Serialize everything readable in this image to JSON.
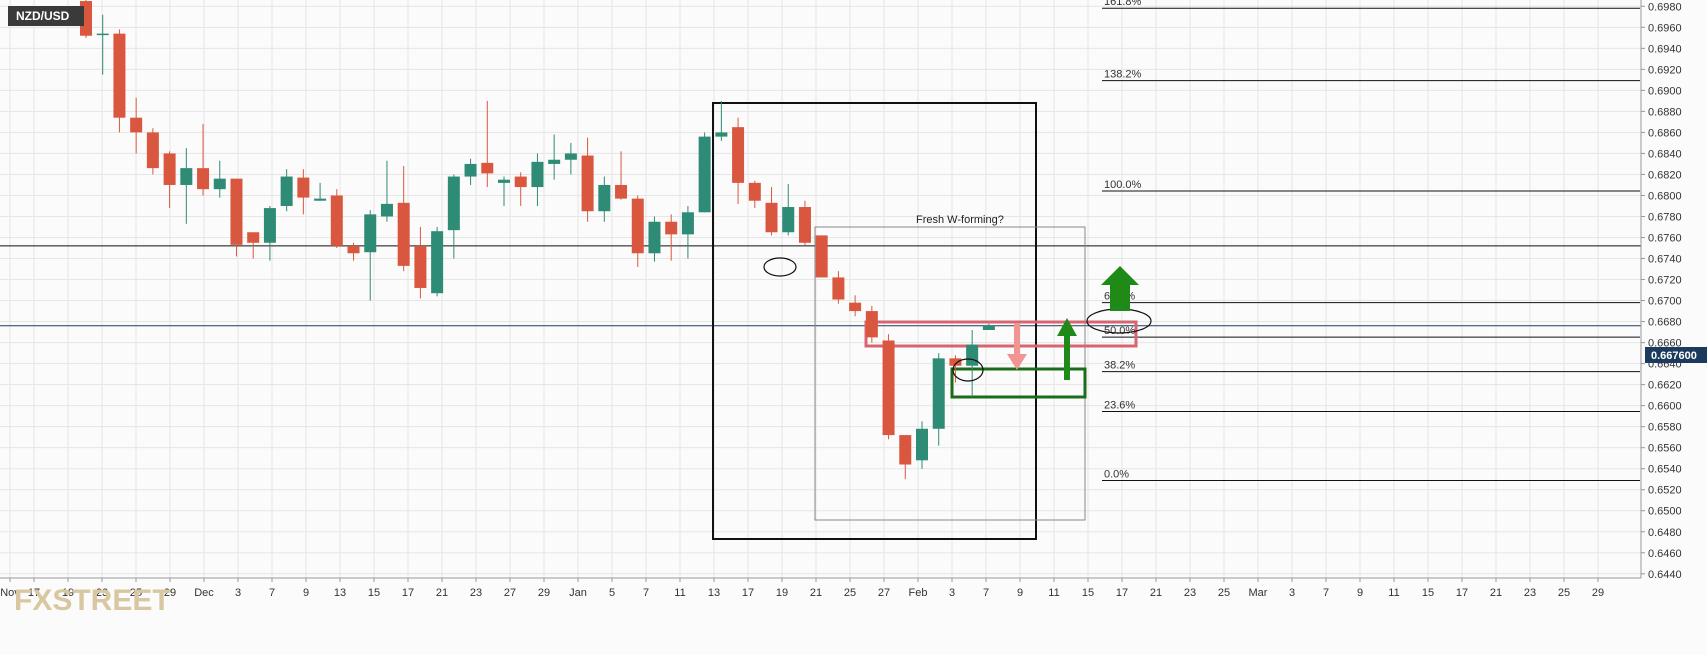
{
  "symbol": "NZD/USD",
  "logo_text": "FXSTREET",
  "price_tag": "0.667600",
  "colors": {
    "bull": "#2e8b75",
    "bear": "#d9573e",
    "grid": "#e6e6e6",
    "price_tag_bg": "#1c3a5e",
    "logo": "#d9c7a2",
    "arrow_green": "#1f8a17",
    "arrow_pink": "#f19494",
    "rect_green": "#1a6b1a",
    "rect_red": "#d76470"
  },
  "chart_data": {
    "type": "candlestick",
    "title": "NZD/USD",
    "ylim": [
      0.6436,
      0.6986
    ],
    "y_ticks": [
      "0.6980",
      "0.6960",
      "0.6940",
      "0.6920",
      "0.6900",
      "0.6880",
      "0.6860",
      "0.6840",
      "0.6820",
      "0.6800",
      "0.6780",
      "0.6760",
      "0.6740",
      "0.6720",
      "0.6700",
      "0.6680",
      "0.6660",
      "0.6640",
      "0.6620",
      "0.6600",
      "0.6580",
      "0.6560",
      "0.6540",
      "0.6520",
      "0.6500",
      "0.6480",
      "0.6460",
      "0.6440"
    ],
    "x_ticks": [
      "Nov",
      "17",
      "19",
      "23",
      "25",
      "29",
      "Dec",
      "3",
      "7",
      "9",
      "13",
      "15",
      "17",
      "21",
      "23",
      "27",
      "29",
      "Jan",
      "5",
      "7",
      "11",
      "13",
      "17",
      "19",
      "21",
      "25",
      "27",
      "Feb",
      "3",
      "7",
      "9",
      "11",
      "15",
      "17",
      "21",
      "23",
      "25",
      "Mar",
      "3",
      "7",
      "9",
      "11",
      "15",
      "17",
      "21",
      "23",
      "25",
      "29"
    ],
    "candles": [
      {
        "o": 0.6985,
        "h": 0.6998,
        "l": 0.695,
        "c": 0.6952
      },
      {
        "o": 0.6953,
        "h": 0.6972,
        "l": 0.6915,
        "c": 0.6954
      },
      {
        "o": 0.6954,
        "h": 0.6958,
        "l": 0.686,
        "c": 0.6874
      },
      {
        "o": 0.6874,
        "h": 0.6893,
        "l": 0.684,
        "c": 0.686
      },
      {
        "o": 0.686,
        "h": 0.6864,
        "l": 0.682,
        "c": 0.6826
      },
      {
        "o": 0.684,
        "h": 0.6842,
        "l": 0.6788,
        "c": 0.681
      },
      {
        "o": 0.681,
        "h": 0.6845,
        "l": 0.6773,
        "c": 0.6826
      },
      {
        "o": 0.6826,
        "h": 0.6868,
        "l": 0.68,
        "c": 0.6806
      },
      {
        "o": 0.6806,
        "h": 0.6833,
        "l": 0.6798,
        "c": 0.6816
      },
      {
        "o": 0.6816,
        "h": 0.6816,
        "l": 0.6742,
        "c": 0.6753
      },
      {
        "o": 0.6765,
        "h": 0.6765,
        "l": 0.674,
        "c": 0.6755
      },
      {
        "o": 0.6755,
        "h": 0.679,
        "l": 0.6738,
        "c": 0.6788
      },
      {
        "o": 0.679,
        "h": 0.6825,
        "l": 0.6785,
        "c": 0.6818
      },
      {
        "o": 0.6817,
        "h": 0.6825,
        "l": 0.6782,
        "c": 0.6798
      },
      {
        "o": 0.6795,
        "h": 0.6812,
        "l": 0.6795,
        "c": 0.6797
      },
      {
        "o": 0.68,
        "h": 0.6806,
        "l": 0.675,
        "c": 0.6752
      },
      {
        "o": 0.6752,
        "h": 0.6755,
        "l": 0.6738,
        "c": 0.6745
      },
      {
        "o": 0.6746,
        "h": 0.6786,
        "l": 0.67,
        "c": 0.6782
      },
      {
        "o": 0.678,
        "h": 0.6833,
        "l": 0.6775,
        "c": 0.6792
      },
      {
        "o": 0.6793,
        "h": 0.6828,
        "l": 0.6728,
        "c": 0.6733
      },
      {
        "o": 0.6752,
        "h": 0.677,
        "l": 0.6702,
        "c": 0.6712
      },
      {
        "o": 0.6707,
        "h": 0.677,
        "l": 0.6704,
        "c": 0.6766
      },
      {
        "o": 0.6767,
        "h": 0.682,
        "l": 0.674,
        "c": 0.6818
      },
      {
        "o": 0.6818,
        "h": 0.6835,
        "l": 0.681,
        "c": 0.683
      },
      {
        "o": 0.6831,
        "h": 0.689,
        "l": 0.6808,
        "c": 0.6821
      },
      {
        "o": 0.6812,
        "h": 0.6818,
        "l": 0.679,
        "c": 0.6815
      },
      {
        "o": 0.6818,
        "h": 0.6822,
        "l": 0.679,
        "c": 0.6808
      },
      {
        "o": 0.6808,
        "h": 0.684,
        "l": 0.679,
        "c": 0.6832
      },
      {
        "o": 0.683,
        "h": 0.6858,
        "l": 0.6815,
        "c": 0.6834
      },
      {
        "o": 0.6834,
        "h": 0.685,
        "l": 0.682,
        "c": 0.684
      },
      {
        "o": 0.6838,
        "h": 0.6855,
        "l": 0.6775,
        "c": 0.6785
      },
      {
        "o": 0.6785,
        "h": 0.6818,
        "l": 0.6775,
        "c": 0.681
      },
      {
        "o": 0.681,
        "h": 0.6842,
        "l": 0.6796,
        "c": 0.6797
      },
      {
        "o": 0.6797,
        "h": 0.68,
        "l": 0.6732,
        "c": 0.6745
      },
      {
        "o": 0.6745,
        "h": 0.678,
        "l": 0.6737,
        "c": 0.6775
      },
      {
        "o": 0.6775,
        "h": 0.6782,
        "l": 0.6738,
        "c": 0.6763
      },
      {
        "o": 0.6763,
        "h": 0.679,
        "l": 0.674,
        "c": 0.6784
      },
      {
        "o": 0.6784,
        "h": 0.686,
        "l": 0.6784,
        "c": 0.6856
      },
      {
        "o": 0.6856,
        "h": 0.689,
        "l": 0.6852,
        "c": 0.686
      },
      {
        "o": 0.6865,
        "h": 0.6874,
        "l": 0.6792,
        "c": 0.6812
      },
      {
        "o": 0.6812,
        "h": 0.6814,
        "l": 0.6788,
        "c": 0.6795
      },
      {
        "o": 0.6793,
        "h": 0.6808,
        "l": 0.6762,
        "c": 0.6765
      },
      {
        "o": 0.6765,
        "h": 0.6811,
        "l": 0.6762,
        "c": 0.6789
      },
      {
        "o": 0.6789,
        "h": 0.6795,
        "l": 0.6752,
        "c": 0.6755
      },
      {
        "o": 0.6762,
        "h": 0.6762,
        "l": 0.6722,
        "c": 0.6722
      },
      {
        "o": 0.6722,
        "h": 0.6728,
        "l": 0.6697,
        "c": 0.6701
      },
      {
        "o": 0.6698,
        "h": 0.6705,
        "l": 0.6685,
        "c": 0.669
      },
      {
        "o": 0.669,
        "h": 0.6695,
        "l": 0.666,
        "c": 0.6665
      },
      {
        "o": 0.6662,
        "h": 0.6668,
        "l": 0.6568,
        "c": 0.6572
      },
      {
        "o": 0.6572,
        "h": 0.6572,
        "l": 0.653,
        "c": 0.6544
      },
      {
        "o": 0.6548,
        "h": 0.6585,
        "l": 0.654,
        "c": 0.6578
      },
      {
        "o": 0.6578,
        "h": 0.665,
        "l": 0.6562,
        "c": 0.6645
      },
      {
        "o": 0.6645,
        "h": 0.6648,
        "l": 0.6622,
        "c": 0.6638
      },
      {
        "o": 0.6638,
        "h": 0.6672,
        "l": 0.6608,
        "c": 0.6658
      },
      {
        "o": 0.6672,
        "h": 0.6678,
        "l": 0.6672,
        "c": 0.6676
      }
    ],
    "fibonacci": [
      {
        "label": "161.8%",
        "value": 0.69782
      },
      {
        "label": "138.2%",
        "value": 0.69093
      },
      {
        "label": "100.0%",
        "value": 0.68042
      },
      {
        "label": "61.8%",
        "value": 0.6698
      },
      {
        "label": "50.0%",
        "value": 0.66652
      },
      {
        "label": "38.2%",
        "value": 0.66324
      },
      {
        "label": "23.6%",
        "value": 0.65944
      },
      {
        "label": "0.0%",
        "value": 0.65288
      }
    ],
    "horizontal_lines": [
      0.6752,
      0.6676
    ],
    "annotations": [
      "Fresh W-forming?"
    ],
    "grid": true
  }
}
